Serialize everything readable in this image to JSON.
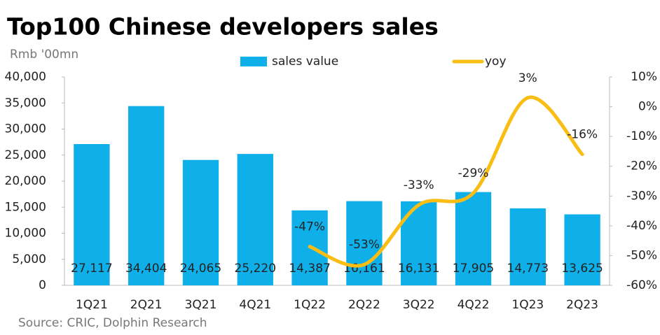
{
  "chart_data": {
    "type": "bar_line",
    "title": "Top100 Chinese developers sales",
    "y_axis_label": "Rmb '00mn",
    "source": "Source: CRIC, Dolphin Research",
    "categories": [
      "1Q21",
      "2Q21",
      "3Q21",
      "4Q21",
      "1Q22",
      "2Q22",
      "3Q22",
      "4Q22",
      "1Q23",
      "2Q23"
    ],
    "series": [
      {
        "name": "sales value",
        "color": "#0fb0ea",
        "values": [
          27117,
          34404,
          24065,
          25220,
          14387,
          16161,
          16131,
          17905,
          14773,
          13625
        ],
        "value_labels": [
          "27,117",
          "34,404",
          "24,065",
          "25,220",
          "14,387",
          "16,161",
          "16,131",
          "17,905",
          "14,773",
          "13,625"
        ]
      },
      {
        "name": "yoy",
        "color": "#f9bd14",
        "axis": "y2",
        "values": [
          null,
          null,
          null,
          null,
          -47,
          -53,
          -33,
          -29,
          3,
          -16
        ],
        "value_labels": [
          null,
          null,
          null,
          null,
          "-47%",
          "-53%",
          "-33%",
          "-29%",
          "3%",
          "-16%"
        ]
      }
    ],
    "ylim": [
      0,
      40000
    ],
    "yticks": [
      0,
      {
        "value": 5000,
        "label": "5,000"
      },
      {
        "value": 10000,
        "label": "10,000"
      },
      {
        "value": 15000,
        "label": "15,000"
      },
      {
        "value": 20000,
        "label": "20,000"
      },
      {
        "value": 25000,
        "label": "25,000"
      },
      {
        "value": 30000,
        "label": "30,000"
      },
      {
        "value": 35000,
        "label": "35,000"
      },
      {
        "value": 40000,
        "label": "40,000"
      }
    ],
    "y2lim": [
      -60,
      10
    ],
    "y2ticks": [
      {
        "value": -60,
        "label": "-60%"
      },
      {
        "value": -50,
        "label": "-50%"
      },
      {
        "value": -40,
        "label": "-40%"
      },
      {
        "value": -30,
        "label": "-30%"
      },
      {
        "value": -20,
        "label": "-20%"
      },
      {
        "value": -10,
        "label": "-10%"
      },
      {
        "value": 0,
        "label": "0%"
      },
      {
        "value": 10,
        "label": "10%"
      }
    ],
    "legend": "top"
  }
}
